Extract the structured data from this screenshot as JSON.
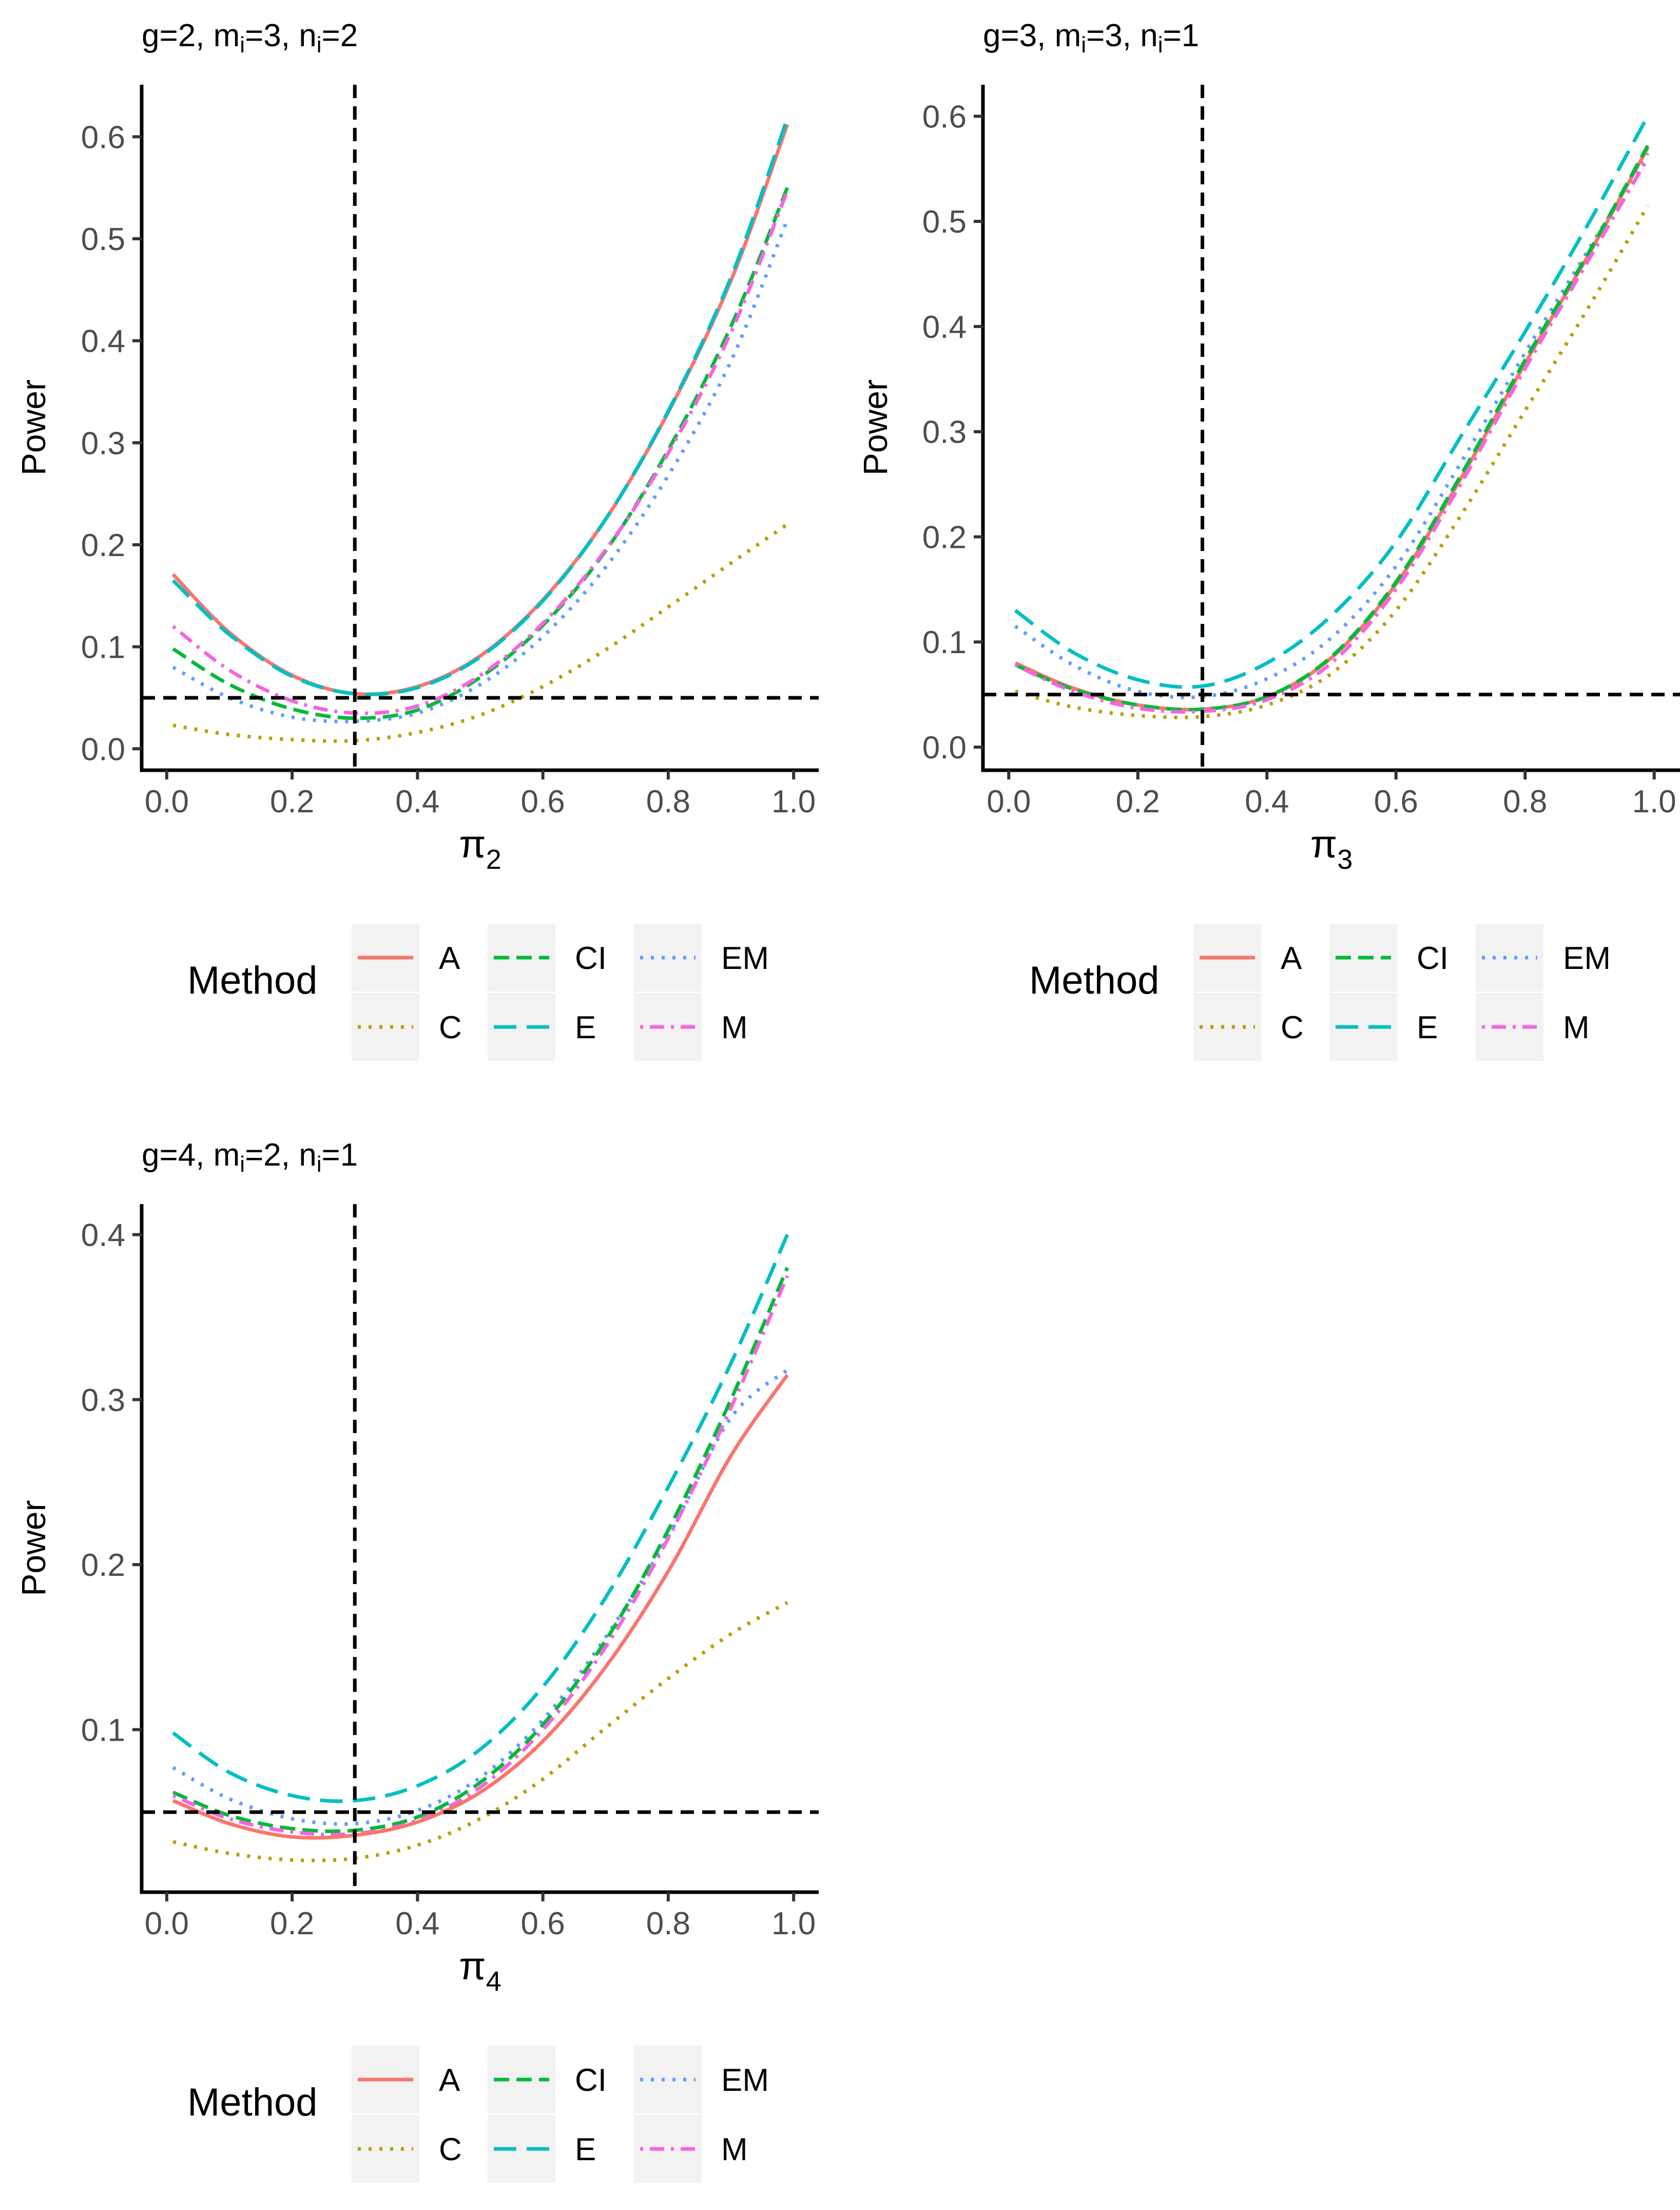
{
  "figure": {
    "legend_title": "Method"
  },
  "methods": [
    {
      "key": "A",
      "label": "A",
      "color": "#F8766D",
      "dash": "solid"
    },
    {
      "key": "CI",
      "label": "CI",
      "color": "#00BA38",
      "dash": "dashed"
    },
    {
      "key": "EM",
      "label": "EM",
      "color": "#619CFF",
      "dash": "dotted"
    },
    {
      "key": "C",
      "label": "C",
      "color": "#B79F00",
      "dash": "dotted"
    },
    {
      "key": "E",
      "label": "E",
      "color": "#00BFC4",
      "dash": "longdash"
    },
    {
      "key": "M",
      "label": "M",
      "color": "#F564E3",
      "dash": "dotdash"
    }
  ],
  "chart_data": [
    {
      "type": "line",
      "title": {
        "g": "g=2",
        "m_base": "m",
        "m_sub": "i",
        "m_val": "=3",
        "n_base": "n",
        "n_sub": "i",
        "n_val": "=2"
      },
      "xlabel": {
        "symbol": "π",
        "sub": "2"
      },
      "ylabel": "Power",
      "xlim": [
        -0.04,
        1.04
      ],
      "ylim": [
        -0.021,
        0.651
      ],
      "xticks": [
        {
          "v": 0.0,
          "label": "0.0"
        },
        {
          "v": 0.2,
          "label": "0.2"
        },
        {
          "v": 0.4,
          "label": "0.4"
        },
        {
          "v": 0.6,
          "label": "0.6"
        },
        {
          "v": 0.8,
          "label": "0.8"
        },
        {
          "v": 1.0,
          "label": "1.0"
        }
      ],
      "yticks": [
        {
          "v": 0.0,
          "label": "0.0"
        },
        {
          "v": 0.1,
          "label": "0.1"
        },
        {
          "v": 0.2,
          "label": "0.2"
        },
        {
          "v": 0.3,
          "label": "0.3"
        },
        {
          "v": 0.4,
          "label": "0.4"
        },
        {
          "v": 0.5,
          "label": "0.5"
        },
        {
          "v": 0.6,
          "label": "0.6"
        }
      ],
      "reference": {
        "vline_x": 0.3,
        "hline_y": 0.05
      },
      "x": [
        0.01,
        0.1,
        0.2,
        0.3,
        0.4,
        0.5,
        0.6,
        0.7,
        0.8,
        0.9,
        0.99
      ],
      "series": [
        {
          "name": "A",
          "values": [
            0.171,
            0.114,
            0.072,
            0.054,
            0.061,
            0.091,
            0.146,
            0.225,
            0.33,
            0.459,
            0.612
          ]
        },
        {
          "name": "E",
          "values": [
            0.165,
            0.112,
            0.071,
            0.054,
            0.06,
            0.09,
            0.145,
            0.225,
            0.331,
            0.462,
            0.618
          ]
        },
        {
          "name": "CI",
          "values": [
            0.098,
            0.063,
            0.039,
            0.03,
            0.038,
            0.07,
            0.121,
            0.194,
            0.293,
            0.414,
            0.55
          ]
        },
        {
          "name": "M",
          "values": [
            0.12,
            0.077,
            0.047,
            0.035,
            0.042,
            0.072,
            0.123,
            0.195,
            0.29,
            0.408,
            0.547
          ]
        },
        {
          "name": "EM",
          "values": [
            0.08,
            0.05,
            0.031,
            0.027,
            0.035,
            0.063,
            0.11,
            0.178,
            0.268,
            0.38,
            0.519
          ]
        },
        {
          "name": "C",
          "values": [
            0.023,
            0.014,
            0.009,
            0.008,
            0.016,
            0.033,
            0.061,
            0.097,
            0.139,
            0.182,
            0.22
          ]
        }
      ]
    },
    {
      "type": "line",
      "title": {
        "g": "g=3",
        "m_base": "m",
        "m_sub": "i",
        "m_val": "=3",
        "n_base": "n",
        "n_sub": "i",
        "n_val": "=1"
      },
      "xlabel": {
        "symbol": "π",
        "sub": "3"
      },
      "ylabel": "Power",
      "xlim": [
        -0.04,
        1.04
      ],
      "ylim": [
        -0.022,
        0.63
      ],
      "xticks": [
        {
          "v": 0.0,
          "label": "0.0"
        },
        {
          "v": 0.2,
          "label": "0.2"
        },
        {
          "v": 0.4,
          "label": "0.4"
        },
        {
          "v": 0.6,
          "label": "0.6"
        },
        {
          "v": 0.8,
          "label": "0.8"
        },
        {
          "v": 1.0,
          "label": "1.0"
        }
      ],
      "yticks": [
        {
          "v": 0.0,
          "label": "0.0"
        },
        {
          "v": 0.1,
          "label": "0.1"
        },
        {
          "v": 0.2,
          "label": "0.2"
        },
        {
          "v": 0.3,
          "label": "0.3"
        },
        {
          "v": 0.4,
          "label": "0.4"
        },
        {
          "v": 0.5,
          "label": "0.5"
        },
        {
          "v": 0.6,
          "label": "0.6"
        }
      ],
      "reference": {
        "vline_x": 0.3,
        "hline_y": 0.05
      },
      "x": [
        0.01,
        0.1,
        0.2,
        0.3,
        0.4,
        0.5,
        0.6,
        0.7,
        0.8,
        0.9,
        0.99
      ],
      "series": [
        {
          "name": "E",
          "values": [
            0.13,
            0.09,
            0.064,
            0.058,
            0.08,
            0.125,
            0.195,
            0.295,
            0.395,
            0.5,
            0.6
          ]
        },
        {
          "name": "EM",
          "values": [
            0.115,
            0.078,
            0.053,
            0.048,
            0.065,
            0.104,
            0.172,
            0.27,
            0.375,
            0.475,
            0.565
          ]
        },
        {
          "name": "A",
          "values": [
            0.08,
            0.056,
            0.04,
            0.036,
            0.048,
            0.085,
            0.155,
            0.255,
            0.365,
            0.47,
            0.57
          ]
        },
        {
          "name": "CI",
          "values": [
            0.078,
            0.055,
            0.04,
            0.036,
            0.048,
            0.086,
            0.157,
            0.258,
            0.368,
            0.472,
            0.572
          ]
        },
        {
          "name": "M",
          "values": [
            0.078,
            0.053,
            0.037,
            0.034,
            0.045,
            0.08,
            0.15,
            0.25,
            0.36,
            0.465,
            0.56
          ]
        },
        {
          "name": "C",
          "values": [
            0.053,
            0.038,
            0.03,
            0.029,
            0.04,
            0.07,
            0.13,
            0.22,
            0.32,
            0.42,
            0.515
          ]
        }
      ]
    },
    {
      "type": "line",
      "title": {
        "g": "g=4",
        "m_base": "m",
        "m_sub": "i",
        "m_val": "=2",
        "n_base": "n",
        "n_sub": "i",
        "n_val": "=1"
      },
      "xlabel": {
        "symbol": "π",
        "sub": "4"
      },
      "ylabel": "Power",
      "xlim": [
        -0.04,
        1.04
      ],
      "ylim": [
        0.0015,
        0.4185
      ],
      "xticks": [
        {
          "v": 0.0,
          "label": "0.0"
        },
        {
          "v": 0.2,
          "label": "0.2"
        },
        {
          "v": 0.4,
          "label": "0.4"
        },
        {
          "v": 0.6,
          "label": "0.6"
        },
        {
          "v": 0.8,
          "label": "0.8"
        },
        {
          "v": 1.0,
          "label": "1.0"
        }
      ],
      "yticks": [
        {
          "v": 0.1,
          "label": "0.1"
        },
        {
          "v": 0.2,
          "label": "0.2"
        },
        {
          "v": 0.3,
          "label": "0.3"
        },
        {
          "v": 0.4,
          "label": "0.4"
        }
      ],
      "reference": {
        "vline_x": 0.3,
        "hline_y": 0.05
      },
      "x": [
        0.01,
        0.1,
        0.2,
        0.3,
        0.4,
        0.5,
        0.6,
        0.7,
        0.8,
        0.9,
        0.99
      ],
      "series": [
        {
          "name": "E",
          "values": [
            0.098,
            0.074,
            0.06,
            0.057,
            0.066,
            0.088,
            0.126,
            0.18,
            0.247,
            0.322,
            0.4
          ]
        },
        {
          "name": "EM",
          "values": [
            0.077,
            0.058,
            0.046,
            0.043,
            0.051,
            0.071,
            0.106,
            0.156,
            0.217,
            0.289,
            0.318
          ]
        },
        {
          "name": "CI",
          "values": [
            0.062,
            0.048,
            0.04,
            0.039,
            0.047,
            0.068,
            0.103,
            0.154,
            0.221,
            0.3,
            0.38
          ]
        },
        {
          "name": "M",
          "values": [
            0.06,
            0.046,
            0.038,
            0.037,
            0.045,
            0.065,
            0.1,
            0.15,
            0.216,
            0.295,
            0.375
          ]
        },
        {
          "name": "A",
          "values": [
            0.057,
            0.043,
            0.035,
            0.036,
            0.044,
            0.062,
            0.093,
            0.138,
            0.196,
            0.266,
            0.315
          ]
        },
        {
          "name": "C",
          "values": [
            0.032,
            0.025,
            0.021,
            0.022,
            0.03,
            0.046,
            0.07,
            0.101,
            0.131,
            0.158,
            0.177
          ]
        }
      ]
    }
  ]
}
